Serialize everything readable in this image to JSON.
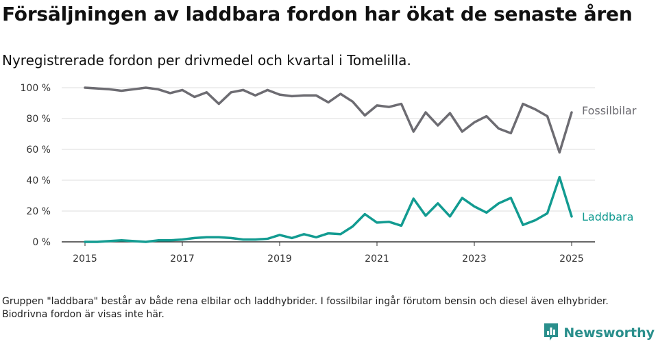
{
  "title": "Försäljningen av laddbara fordon har ökat de senaste åren",
  "subtitle": "Nyregistrerade fordon per drivmedel och kvartal i Tomelilla.",
  "footnote": "Gruppen \"laddbara\" består av både rena elbilar och laddhybrider. I fossilbilar ingår förutom bensin och diesel även elhybrider. Biodrivna fordon är visas inte här.",
  "logo": {
    "text": "Newsworthy",
    "color": "#2a8f8c",
    "icon": "bar-chart-icon"
  },
  "chart_data": {
    "type": "line",
    "xlim": [
      2015,
      2025
    ],
    "ylim": [
      0,
      100
    ],
    "x_ticks": [
      2015,
      2017,
      2019,
      2021,
      2023,
      2025
    ],
    "x_tick_labels": [
      "2015",
      "2017",
      "2019",
      "2021",
      "2023",
      "2025"
    ],
    "y_ticks": [
      0,
      20,
      40,
      60,
      80,
      100
    ],
    "y_tick_labels": [
      "0 %",
      "20 %",
      "40 %",
      "60 %",
      "80 %",
      "100 %"
    ],
    "grid": "horizontal",
    "legend": "direct labels at line ends",
    "series": [
      {
        "name": "Fossilbilar",
        "color": "#6d6c72",
        "x": [
          2015,
          2015.25,
          2015.5,
          2015.75,
          2016,
          2016.25,
          2016.5,
          2016.75,
          2017,
          2017.25,
          2017.5,
          2017.75,
          2018,
          2018.25,
          2018.5,
          2018.75,
          2019,
          2019.25,
          2019.5,
          2019.75,
          2020,
          2020.25,
          2020.5,
          2020.75,
          2021,
          2021.25,
          2021.5,
          2021.75,
          2022,
          2022.25,
          2022.5,
          2022.75,
          2023,
          2023.25,
          2023.5,
          2023.75,
          2024,
          2024.25,
          2024.5,
          2024.75,
          2025
        ],
        "values": [
          100,
          99.5,
          99,
          98,
          99,
          100,
          99,
          96.5,
          98.5,
          94,
          97,
          89.5,
          97,
          98.5,
          95,
          98.5,
          95.5,
          94.5,
          95,
          95,
          90.5,
          96,
          91,
          82,
          88.5,
          87.5,
          89.5,
          71.5,
          84,
          75.5,
          83.5,
          71.5,
          77.5,
          81.5,
          73.5,
          70.5,
          89.5,
          86,
          81.5,
          58,
          84
        ]
      },
      {
        "name": "Laddbara",
        "color": "#129b91",
        "x": [
          2015,
          2015.25,
          2015.5,
          2015.75,
          2016,
          2016.25,
          2016.5,
          2016.75,
          2017,
          2017.25,
          2017.5,
          2017.75,
          2018,
          2018.25,
          2018.5,
          2018.75,
          2019,
          2019.25,
          2019.5,
          2019.75,
          2020,
          2020.25,
          2020.5,
          2020.75,
          2021,
          2021.25,
          2021.5,
          2021.75,
          2022,
          2022.25,
          2022.5,
          2022.75,
          2023,
          2023.25,
          2023.5,
          2023.75,
          2024,
          2024.25,
          2024.5,
          2024.75,
          2025
        ],
        "values": [
          0,
          0,
          0.5,
          1,
          0.5,
          0,
          1,
          1,
          1.5,
          2.5,
          3,
          3,
          2.5,
          1.5,
          1.5,
          2,
          4.5,
          2.5,
          5,
          3,
          5.5,
          5,
          10,
          18,
          12.5,
          13,
          10.5,
          28,
          17,
          25,
          16.5,
          28.5,
          23,
          19,
          25,
          28.5,
          11,
          14,
          18.5,
          42,
          16.5
        ]
      }
    ]
  }
}
